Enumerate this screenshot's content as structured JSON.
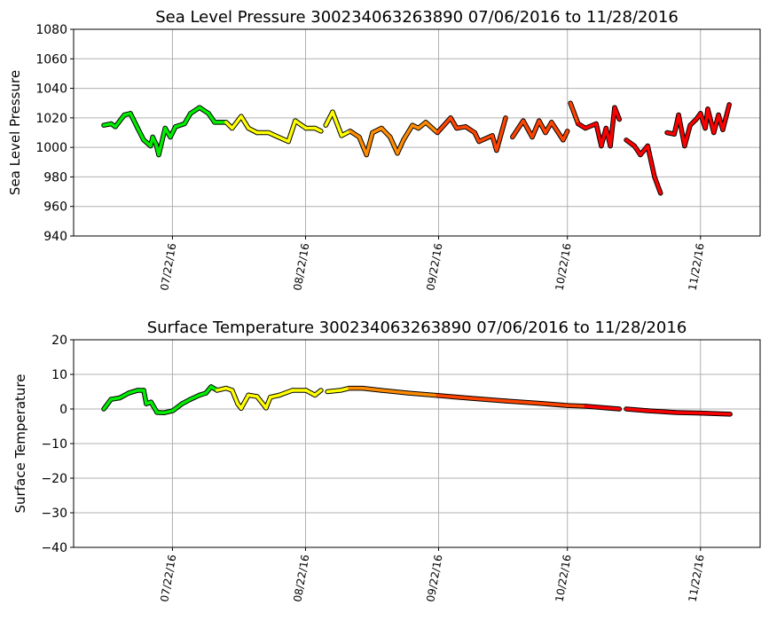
{
  "chart_data": [
    {
      "type": "line",
      "title": "Sea Level Pressure 300234063263890  07/06/2016 to 11/28/2016",
      "xlabel": "",
      "ylabel": "Sea Level Pressure",
      "ylim": [
        940,
        1080
      ],
      "yticks": [
        940,
        960,
        980,
        1000,
        1020,
        1040,
        1060,
        1080
      ],
      "xticks": [
        {
          "day": 16,
          "label": "07/22/16"
        },
        {
          "day": 47,
          "label": "08/22/16"
        },
        {
          "day": 78,
          "label": "09/22/16"
        },
        {
          "day": 108,
          "label": "10/22/16"
        },
        {
          "day": 139,
          "label": "11/22/16"
        }
      ],
      "x_units": "days since 07/06/2016",
      "grid": true,
      "points": [
        [
          0,
          1015
        ],
        [
          1.7,
          1016
        ],
        [
          2.7,
          1014
        ],
        [
          4.8,
          1022
        ],
        [
          6.2,
          1023
        ],
        [
          7.9,
          1013
        ],
        [
          9.3,
          1005
        ],
        [
          10.9,
          1001
        ],
        [
          11.4,
          1007
        ],
        [
          12.2,
          1002
        ],
        [
          12.8,
          995
        ],
        [
          14.3,
          1013
        ],
        [
          15.5,
          1007
        ],
        [
          16.7,
          1014
        ],
        [
          18.8,
          1016
        ],
        [
          20.2,
          1023
        ],
        [
          22.3,
          1027
        ],
        [
          24.4,
          1023
        ],
        [
          25.8,
          1017
        ],
        [
          28.5,
          1017
        ],
        [
          29.9,
          1013
        ],
        [
          32,
          1021
        ],
        [
          33.7,
          1013
        ],
        [
          35.7,
          1010
        ],
        [
          38.4,
          1010
        ],
        [
          39.9,
          1008
        ],
        [
          43,
          1004
        ],
        [
          44.6,
          1018
        ],
        [
          47.1,
          1013
        ],
        [
          49.2,
          1013
        ],
        [
          50.6,
          1011
        ],
        null,
        [
          51.7,
          1015
        ],
        [
          53.3,
          1024
        ],
        [
          55.4,
          1008
        ],
        [
          57.4,
          1011
        ],
        [
          59.5,
          1007
        ],
        [
          61.2,
          995
        ],
        [
          62.6,
          1010
        ],
        [
          64.7,
          1013
        ],
        [
          66.7,
          1007
        ],
        [
          68.4,
          996
        ],
        [
          69.8,
          1005
        ],
        [
          71.9,
          1015
        ],
        [
          73.3,
          1013
        ],
        [
          75,
          1017
        ],
        [
          77.7,
          1010
        ],
        [
          80.8,
          1020
        ],
        [
          82.2,
          1013
        ],
        [
          84.3,
          1014
        ],
        [
          86.4,
          1010
        ],
        [
          87.4,
          1004
        ],
        [
          90.5,
          1008
        ],
        [
          91.5,
          998
        ],
        [
          93.6,
          1020
        ],
        null,
        [
          95.2,
          1007
        ],
        [
          97.7,
          1018
        ],
        [
          99.8,
          1007
        ],
        [
          101.4,
          1018
        ],
        [
          102.9,
          1010
        ],
        [
          104.3,
          1017
        ],
        [
          107,
          1005
        ],
        [
          108,
          1011
        ],
        null,
        [
          108.7,
          1030
        ],
        [
          110.5,
          1016
        ],
        [
          112.2,
          1013
        ],
        [
          114.7,
          1016
        ],
        [
          115.9,
          1001
        ],
        [
          117,
          1013
        ],
        [
          118,
          1001
        ],
        [
          119,
          1027
        ],
        [
          120.1,
          1019
        ],
        null,
        [
          121.7,
          1005
        ],
        [
          123.6,
          1001
        ],
        [
          125,
          995
        ],
        [
          126.7,
          1001
        ],
        [
          128.3,
          980
        ],
        [
          129.7,
          969
        ],
        null,
        [
          131.2,
          1010
        ],
        [
          132.9,
          1009
        ],
        [
          133.9,
          1022
        ],
        [
          135.3,
          1001
        ],
        [
          136.6,
          1015
        ],
        [
          138,
          1019
        ],
        [
          139,
          1023
        ],
        [
          140.1,
          1013
        ],
        [
          140.7,
          1026
        ],
        [
          142.1,
          1010
        ],
        [
          143.2,
          1022
        ],
        [
          144.2,
          1012
        ],
        [
          145.7,
          1029
        ]
      ]
    },
    {
      "type": "line",
      "title": "Surface Temperature 300234063263890  07/06/2016 to 11/28/2016",
      "xlabel": "",
      "ylabel": "Surface Temperature",
      "ylim": [
        -40,
        20
      ],
      "yticks": [
        -40,
        -30,
        -20,
        -10,
        0,
        10,
        20
      ],
      "xticks": [
        {
          "day": 16,
          "label": "07/22/16"
        },
        {
          "day": 47,
          "label": "08/22/16"
        },
        {
          "day": 78,
          "label": "09/22/16"
        },
        {
          "day": 108,
          "label": "10/22/16"
        },
        {
          "day": 139,
          "label": "11/22/16"
        }
      ],
      "x_units": "days since 07/06/2016",
      "grid": true,
      "points": [
        [
          0,
          0
        ],
        [
          1.7,
          2.8
        ],
        [
          3.7,
          3.2
        ],
        [
          5.8,
          4.6
        ],
        [
          7.9,
          5.4
        ],
        [
          9.3,
          5.4
        ],
        [
          9.9,
          1.5
        ],
        [
          11,
          2
        ],
        [
          12.4,
          -1
        ],
        [
          14,
          -1.1
        ],
        [
          16.1,
          -0.5
        ],
        [
          18.2,
          1.5
        ],
        [
          20.2,
          2.8
        ],
        [
          22.3,
          4
        ],
        [
          23.8,
          4.6
        ],
        [
          25,
          6.4
        ],
        [
          26.4,
          5.4
        ],
        [
          28.5,
          6
        ],
        [
          29.9,
          5.4
        ],
        [
          31.2,
          1.5
        ],
        [
          32,
          0.2
        ],
        [
          33.7,
          4
        ],
        [
          35.7,
          3.6
        ],
        [
          37.8,
          0.3
        ],
        [
          38.8,
          3.4
        ],
        [
          40.9,
          4
        ],
        [
          44,
          5.4
        ],
        [
          47.1,
          5.4
        ],
        [
          49.2,
          4
        ],
        [
          50.6,
          5.4
        ],
        null,
        [
          52.1,
          5
        ],
        [
          55.2,
          5.4
        ],
        [
          57.2,
          6
        ],
        [
          60.3,
          6
        ],
        [
          64.5,
          5.4
        ],
        [
          70.9,
          4.6
        ],
        [
          77.7,
          3.9
        ],
        [
          85.3,
          3.1
        ],
        [
          93.6,
          2.3
        ],
        [
          101.9,
          1.6
        ],
        [
          108,
          1
        ],
        [
          112.2,
          0.8
        ],
        [
          120.1,
          0
        ],
        null,
        [
          121.7,
          0
        ],
        [
          126.7,
          -0.5
        ],
        [
          132.9,
          -1
        ],
        [
          139,
          -1.2
        ],
        [
          145.9,
          -1.5
        ]
      ]
    }
  ],
  "color_bands": [
    {
      "until_day": 26,
      "color": "#00ee00"
    },
    {
      "until_day": 56,
      "color": "#ffff00"
    },
    {
      "until_day": 76,
      "color": "#ff8c00"
    },
    {
      "until_day": 110,
      "color": "#ff4500"
    },
    {
      "until_day": 999,
      "color": "#ff0000"
    }
  ]
}
